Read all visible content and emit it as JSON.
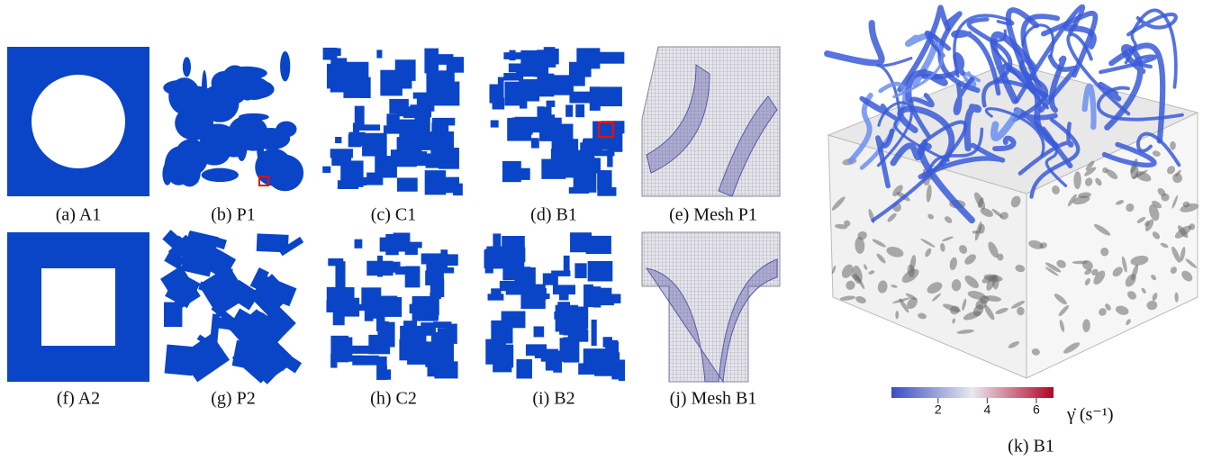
{
  "panels": [
    {
      "caption": "(a) A1"
    },
    {
      "caption": "(b) P1"
    },
    {
      "caption": "(c) C1"
    },
    {
      "caption": "(d) B1"
    },
    {
      "caption": "(e) Mesh P1"
    },
    {
      "caption": "(f) A2"
    },
    {
      "caption": "(g) P2"
    },
    {
      "caption": "(h) C2"
    },
    {
      "caption": "(i) B2"
    },
    {
      "caption": "(j) Mesh B1"
    }
  ],
  "render": {
    "caption": "(k) B1",
    "colorbar": {
      "label": "γ̇ (s⁻¹)",
      "lim": [
        0.1,
        6.7
      ],
      "ticks": [
        2,
        4,
        6
      ]
    }
  }
}
